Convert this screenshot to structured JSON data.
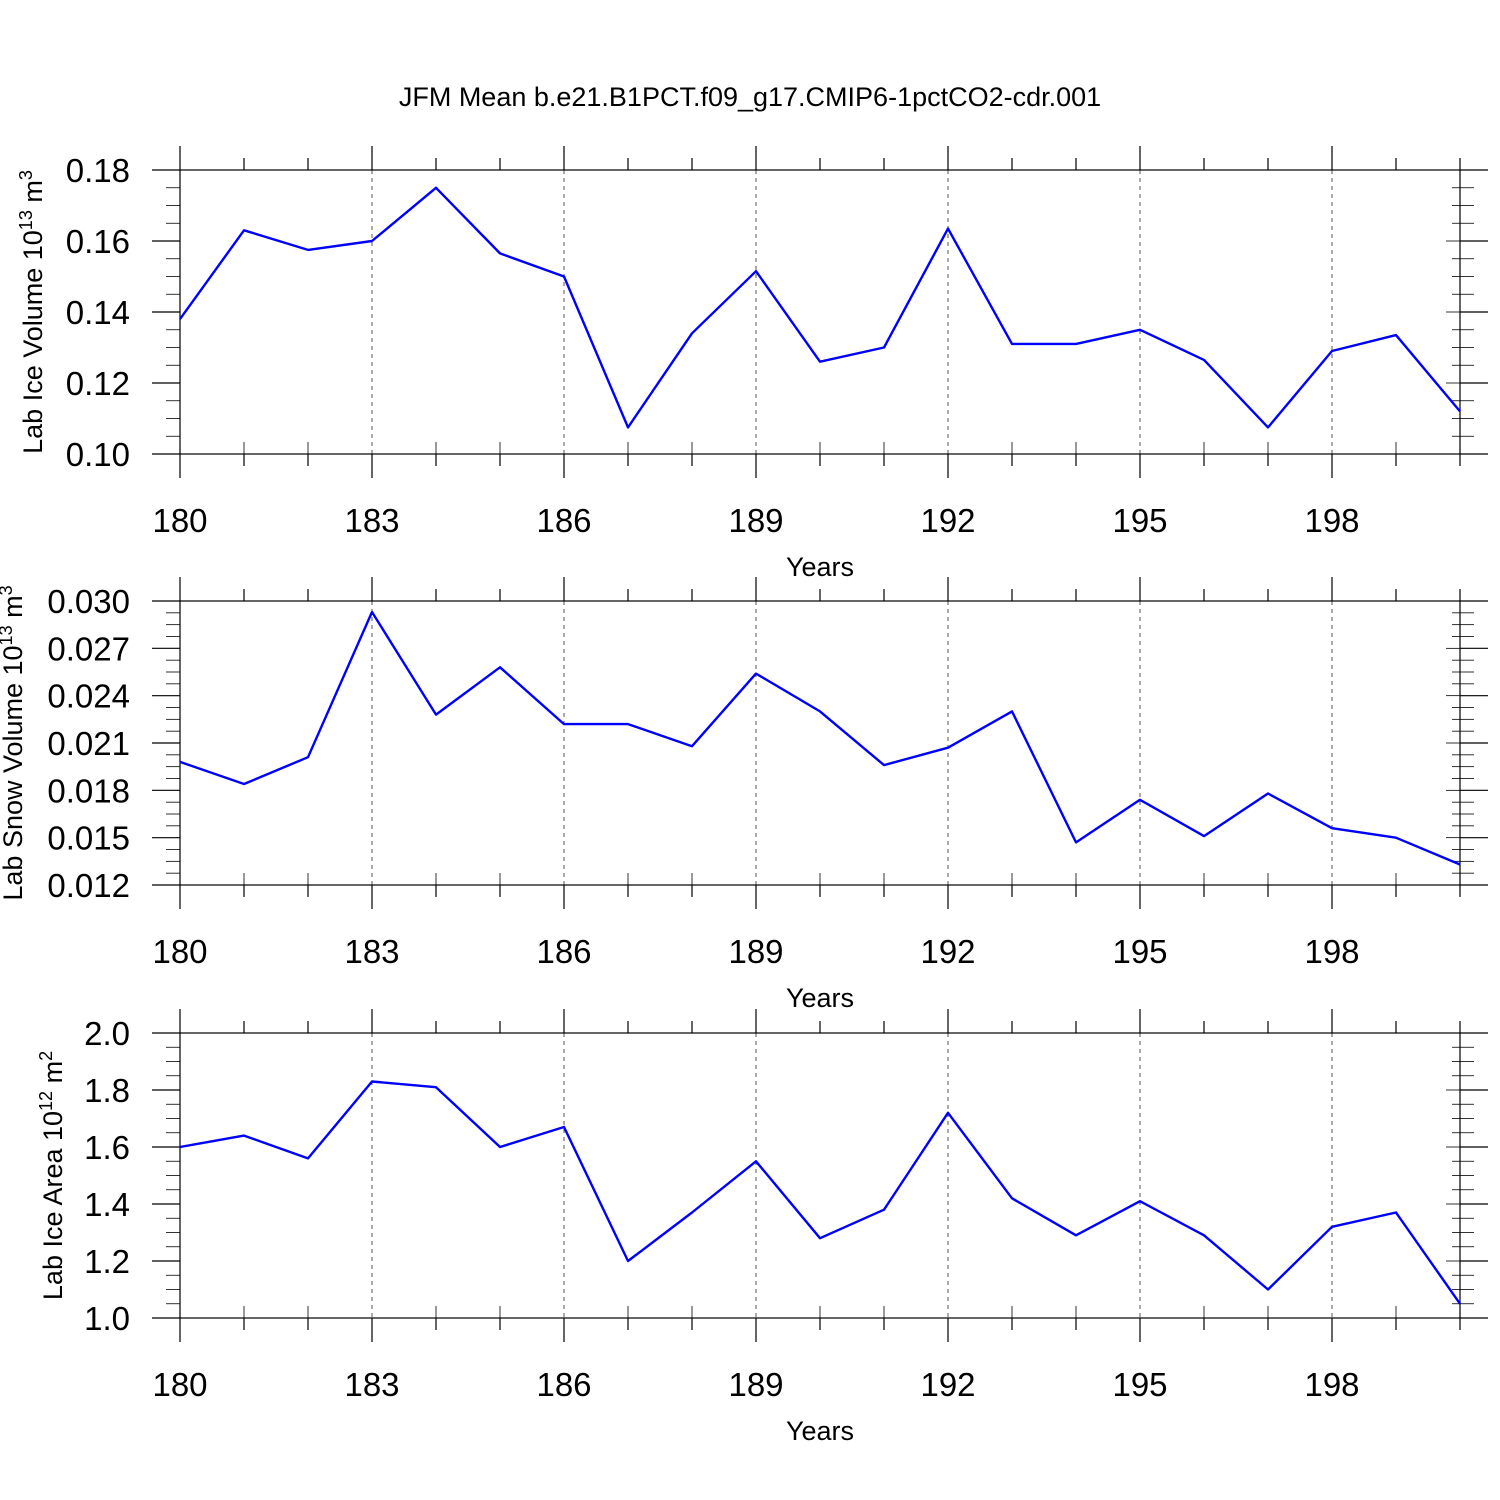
{
  "title": "JFM Mean b.e21.B1PCT.f09_g17.CMIP6-1pctCO2-cdr.001",
  "colors": {
    "series": "#0000ff",
    "frame": "#000000",
    "grid": "#555555"
  },
  "chart_data": [
    {
      "type": "line",
      "ylabel_prefix": "Lab Ice Volume 10",
      "ylabel_exp": "13",
      "ylabel_unit": " m",
      "ylabel_unit_exp": "3",
      "xlabel": "Years",
      "x": [
        180,
        181,
        182,
        183,
        184,
        185,
        186,
        187,
        188,
        189,
        190,
        191,
        192,
        193,
        194,
        195,
        196,
        197,
        198,
        199,
        200
      ],
      "xlim": [
        180,
        200
      ],
      "xticks": [
        180,
        183,
        186,
        189,
        192,
        195,
        198
      ],
      "xtick_labels": [
        "180",
        "183",
        "186",
        "189",
        "192",
        "195",
        "198"
      ],
      "ylim": [
        0.1,
        0.18
      ],
      "yticks": [
        0.1,
        0.12,
        0.14,
        0.16,
        0.18
      ],
      "ytick_labels": [
        "0.10",
        "0.12",
        "0.14",
        "0.16",
        "0.18"
      ],
      "grid": "vertical dashed at major x ticks",
      "series": [
        {
          "values": [
            0.138,
            0.163,
            0.1575,
            0.16,
            0.175,
            0.1565,
            0.15,
            0.1075,
            0.134,
            0.1515,
            0.126,
            0.13,
            0.1635,
            0.131,
            0.131,
            0.135,
            0.1265,
            0.1075,
            0.129,
            0.1335,
            0.112
          ]
        }
      ]
    },
    {
      "type": "line",
      "ylabel_prefix": "Lab Snow Volume 10",
      "ylabel_exp": "13",
      "ylabel_unit": " m",
      "ylabel_unit_exp": "3",
      "xlabel": "Years",
      "x": [
        180,
        181,
        182,
        183,
        184,
        185,
        186,
        187,
        188,
        189,
        190,
        191,
        192,
        193,
        194,
        195,
        196,
        197,
        198,
        199,
        200
      ],
      "xlim": [
        180,
        200
      ],
      "xticks": [
        180,
        183,
        186,
        189,
        192,
        195,
        198
      ],
      "xtick_labels": [
        "180",
        "183",
        "186",
        "189",
        "192",
        "195",
        "198"
      ],
      "ylim": [
        0.012,
        0.03
      ],
      "yticks": [
        0.012,
        0.015,
        0.018,
        0.021,
        0.024,
        0.027,
        0.03
      ],
      "ytick_labels": [
        "0.012",
        "0.015",
        "0.018",
        "0.021",
        "0.024",
        "0.027",
        "0.030"
      ],
      "grid": "vertical dashed at major x ticks",
      "series": [
        {
          "values": [
            0.0198,
            0.0184,
            0.0201,
            0.0293,
            0.0228,
            0.0258,
            0.0222,
            0.0222,
            0.0208,
            0.0254,
            0.023,
            0.0196,
            0.0207,
            0.023,
            0.0147,
            0.0174,
            0.0151,
            0.0178,
            0.0156,
            0.015,
            0.0133
          ]
        }
      ]
    },
    {
      "type": "line",
      "ylabel_prefix": "Lab Ice Area 10",
      "ylabel_exp": "12",
      "ylabel_unit": " m",
      "ylabel_unit_exp": "2",
      "xlabel": "Years",
      "x": [
        180,
        181,
        182,
        183,
        184,
        185,
        186,
        187,
        188,
        189,
        190,
        191,
        192,
        193,
        194,
        195,
        196,
        197,
        198,
        199,
        200
      ],
      "xlim": [
        180,
        200
      ],
      "xticks": [
        180,
        183,
        186,
        189,
        192,
        195,
        198
      ],
      "xtick_labels": [
        "180",
        "183",
        "186",
        "189",
        "192",
        "195",
        "198"
      ],
      "ylim": [
        1.0,
        2.0
      ],
      "yticks": [
        1.0,
        1.2,
        1.4,
        1.6,
        1.8,
        2.0
      ],
      "ytick_labels": [
        "1.0",
        "1.2",
        "1.4",
        "1.6",
        "1.8",
        "2.0"
      ],
      "grid": "vertical dashed at major x ticks",
      "series": [
        {
          "values": [
            1.6,
            1.64,
            1.56,
            1.83,
            1.81,
            1.6,
            1.67,
            1.2,
            1.37,
            1.55,
            1.28,
            1.38,
            1.72,
            1.42,
            1.29,
            1.41,
            1.29,
            1.1,
            1.32,
            1.37,
            1.05
          ]
        }
      ]
    }
  ]
}
